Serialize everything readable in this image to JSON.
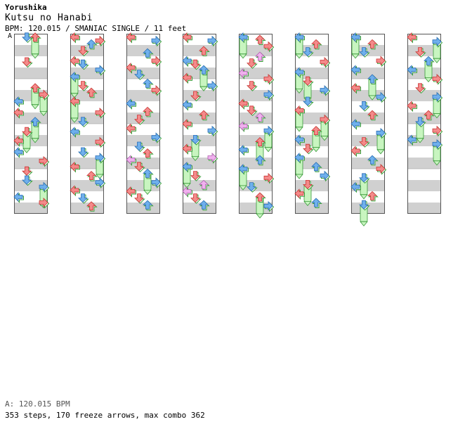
{
  "song": {
    "artist": "Yorushika",
    "title": "Kutsu no Hanabi",
    "meta": "BPM: 120.015 / SMANIAC SINGLE / 11 feet",
    "section_marker": "A"
  },
  "footer": {
    "bpm_line": "A: 120.015 BPM",
    "stats_line": "353 steps, 170 freeze arrows, max combo 362"
  },
  "colors": {
    "red": "#f48a8a",
    "blue": "#6fb0ec",
    "pink": "#f0b0ee",
    "freeze": "#c8f5c0",
    "stripe": "#d0d0d0"
  },
  "chart_data": {
    "type": "step-chart",
    "columns": 8,
    "beats_per_column": 16,
    "lanes": [
      "left",
      "down",
      "up",
      "right"
    ],
    "notes": [
      [
        0,
        0.3,
        1,
        "b",
        0
      ],
      [
        0,
        0.3,
        2,
        "r",
        2
      ],
      [
        0,
        2.5,
        1,
        "r",
        0
      ],
      [
        0,
        4.8,
        2,
        "r",
        1
      ],
      [
        0,
        5.4,
        3,
        "r",
        1
      ],
      [
        0,
        6.0,
        0,
        "b",
        0
      ],
      [
        0,
        7.0,
        0,
        "r",
        0
      ],
      [
        0,
        7.8,
        2,
        "b",
        1
      ],
      [
        0,
        8.7,
        1,
        "r",
        1
      ],
      [
        0,
        9.5,
        0,
        "r",
        0
      ],
      [
        0,
        10.5,
        0,
        "b",
        0
      ],
      [
        0,
        11.3,
        3,
        "r",
        0
      ],
      [
        0,
        12.2,
        1,
        "r",
        0
      ],
      [
        0,
        13.0,
        1,
        "b",
        0
      ],
      [
        0,
        13.6,
        3,
        "b",
        1
      ],
      [
        0,
        14.5,
        0,
        "b",
        0
      ],
      [
        0,
        15.0,
        3,
        "r",
        0
      ],
      [
        1,
        0.3,
        0,
        "r",
        0
      ],
      [
        1,
        0.6,
        3,
        "r",
        0
      ],
      [
        1,
        0.9,
        2,
        "b",
        0
      ],
      [
        1,
        1.5,
        1,
        "r",
        0
      ],
      [
        1,
        2.4,
        0,
        "r",
        0
      ],
      [
        1,
        2.7,
        1,
        "b",
        0
      ],
      [
        1,
        3.2,
        3,
        "b",
        0
      ],
      [
        1,
        3.8,
        0,
        "b",
        1
      ],
      [
        1,
        4.6,
        1,
        "r",
        0
      ],
      [
        1,
        5.2,
        2,
        "r",
        0
      ],
      [
        1,
        6.0,
        0,
        "r",
        1
      ],
      [
        1,
        7.0,
        3,
        "r",
        0
      ],
      [
        1,
        7.8,
        1,
        "b",
        0
      ],
      [
        1,
        8.7,
        0,
        "b",
        0
      ],
      [
        1,
        9.6,
        3,
        "r",
        0
      ],
      [
        1,
        10.5,
        1,
        "b",
        0
      ],
      [
        1,
        11.0,
        3,
        "b",
        1
      ],
      [
        1,
        11.8,
        0,
        "r",
        0
      ],
      [
        1,
        12.6,
        2,
        "r",
        0
      ],
      [
        1,
        13.2,
        3,
        "b",
        0
      ],
      [
        1,
        13.9,
        0,
        "r",
        0
      ],
      [
        1,
        14.6,
        1,
        "b",
        0
      ],
      [
        1,
        15.3,
        2,
        "r",
        0
      ],
      [
        2,
        0.3,
        0,
        "r",
        0
      ],
      [
        2,
        0.6,
        3,
        "b",
        0
      ],
      [
        2,
        1.7,
        2,
        "b",
        0
      ],
      [
        2,
        2.4,
        3,
        "r",
        0
      ],
      [
        2,
        3.0,
        0,
        "r",
        0
      ],
      [
        2,
        3.6,
        1,
        "b",
        0
      ],
      [
        2,
        4.4,
        2,
        "b",
        0
      ],
      [
        2,
        5.0,
        3,
        "r",
        0
      ],
      [
        2,
        6.2,
        0,
        "b",
        0
      ],
      [
        2,
        6.9,
        2,
        "r",
        0
      ],
      [
        2,
        7.6,
        1,
        "r",
        0
      ],
      [
        2,
        8.4,
        0,
        "r",
        0
      ],
      [
        2,
        9.2,
        3,
        "b",
        0
      ],
      [
        2,
        10.0,
        1,
        "b",
        0
      ],
      [
        2,
        10.6,
        2,
        "r",
        0
      ],
      [
        2,
        11.2,
        0,
        "p",
        0
      ],
      [
        2,
        11.8,
        1,
        "r",
        0
      ],
      [
        2,
        12.4,
        2,
        "b",
        1
      ],
      [
        2,
        13.2,
        3,
        "b",
        0
      ],
      [
        2,
        14.0,
        0,
        "r",
        0
      ],
      [
        2,
        14.6,
        1,
        "r",
        0
      ],
      [
        2,
        15.2,
        2,
        "b",
        0
      ],
      [
        3,
        0.3,
        0,
        "r",
        0
      ],
      [
        3,
        0.6,
        3,
        "b",
        0
      ],
      [
        3,
        1.5,
        2,
        "r",
        0
      ],
      [
        3,
        2.4,
        0,
        "b",
        0
      ],
      [
        3,
        2.7,
        1,
        "r",
        0
      ],
      [
        3,
        3.2,
        2,
        "b",
        1
      ],
      [
        3,
        3.9,
        0,
        "r",
        0
      ],
      [
        3,
        4.6,
        3,
        "b",
        0
      ],
      [
        3,
        5.5,
        1,
        "r",
        0
      ],
      [
        3,
        6.3,
        0,
        "b",
        0
      ],
      [
        3,
        7.2,
        2,
        "r",
        0
      ],
      [
        3,
        8.0,
        0,
        "r",
        0
      ],
      [
        3,
        8.6,
        3,
        "b",
        0
      ],
      [
        3,
        9.4,
        1,
        "b",
        1
      ],
      [
        3,
        10.2,
        0,
        "r",
        0
      ],
      [
        3,
        11.0,
        3,
        "p",
        0
      ],
      [
        3,
        11.8,
        0,
        "b",
        1
      ],
      [
        3,
        12.6,
        1,
        "r",
        0
      ],
      [
        3,
        13.4,
        2,
        "p",
        0
      ],
      [
        3,
        14.0,
        0,
        "p",
        0
      ],
      [
        3,
        14.6,
        1,
        "r",
        0
      ],
      [
        3,
        15.2,
        2,
        "b",
        0
      ],
      [
        4,
        0.3,
        0,
        "b",
        1
      ],
      [
        4,
        0.5,
        2,
        "r",
        0
      ],
      [
        4,
        1.1,
        3,
        "r",
        0
      ],
      [
        4,
        2.0,
        2,
        "p",
        0
      ],
      [
        4,
        2.6,
        1,
        "r",
        0
      ],
      [
        4,
        3.5,
        0,
        "p",
        0
      ],
      [
        4,
        4.0,
        3,
        "r",
        0
      ],
      [
        4,
        4.6,
        1,
        "r",
        0
      ],
      [
        4,
        5.4,
        3,
        "b",
        0
      ],
      [
        4,
        6.2,
        0,
        "r",
        0
      ],
      [
        4,
        6.8,
        1,
        "r",
        0
      ],
      [
        4,
        7.4,
        2,
        "p",
        0
      ],
      [
        4,
        8.2,
        0,
        "p",
        0
      ],
      [
        4,
        8.6,
        3,
        "b",
        1
      ],
      [
        4,
        9.6,
        2,
        "r",
        1
      ],
      [
        4,
        10.3,
        0,
        "b",
        0
      ],
      [
        4,
        11.2,
        2,
        "b",
        0
      ],
      [
        4,
        12.0,
        0,
        "b",
        1
      ],
      [
        4,
        12.8,
        3,
        "r",
        0
      ],
      [
        4,
        13.6,
        1,
        "b",
        0
      ],
      [
        4,
        14.5,
        2,
        "r",
        1
      ],
      [
        4,
        15.3,
        3,
        "b",
        0
      ],
      [
        5,
        0.3,
        0,
        "b",
        1
      ],
      [
        5,
        0.9,
        2,
        "r",
        0
      ],
      [
        5,
        1.6,
        1,
        "b",
        0
      ],
      [
        5,
        2.5,
        3,
        "r",
        0
      ],
      [
        5,
        3.4,
        0,
        "b",
        1
      ],
      [
        5,
        4.2,
        1,
        "r",
        1
      ],
      [
        5,
        5.0,
        3,
        "b",
        0
      ],
      [
        5,
        6.0,
        1,
        "b",
        0
      ],
      [
        5,
        6.8,
        0,
        "r",
        1
      ],
      [
        5,
        7.6,
        3,
        "r",
        1
      ],
      [
        5,
        8.6,
        2,
        "r",
        1
      ],
      [
        5,
        9.4,
        0,
        "b",
        0
      ],
      [
        5,
        10.2,
        1,
        "r",
        0
      ],
      [
        5,
        11.0,
        0,
        "b",
        1
      ],
      [
        5,
        11.8,
        2,
        "b",
        0
      ],
      [
        5,
        12.6,
        3,
        "b",
        0
      ],
      [
        5,
        13.4,
        1,
        "r",
        1
      ],
      [
        5,
        14.2,
        0,
        "r",
        0
      ],
      [
        5,
        15.0,
        2,
        "b",
        0
      ],
      [
        6,
        0.3,
        0,
        "b",
        1
      ],
      [
        6,
        0.9,
        2,
        "r",
        0
      ],
      [
        6,
        1.6,
        1,
        "b",
        0
      ],
      [
        6,
        2.4,
        3,
        "r",
        0
      ],
      [
        6,
        3.2,
        0,
        "b",
        0
      ],
      [
        6,
        4.0,
        2,
        "b",
        1
      ],
      [
        6,
        4.8,
        0,
        "r",
        0
      ],
      [
        6,
        5.6,
        3,
        "b",
        0
      ],
      [
        6,
        6.4,
        1,
        "b",
        0
      ],
      [
        6,
        7.2,
        2,
        "r",
        0
      ],
      [
        6,
        8.0,
        0,
        "b",
        0
      ],
      [
        6,
        8.8,
        3,
        "b",
        1
      ],
      [
        6,
        9.6,
        1,
        "r",
        0
      ],
      [
        6,
        10.4,
        0,
        "r",
        0
      ],
      [
        6,
        11.2,
        2,
        "b",
        0
      ],
      [
        6,
        12.0,
        3,
        "r",
        0
      ],
      [
        6,
        12.8,
        1,
        "b",
        1
      ],
      [
        6,
        13.6,
        0,
        "b",
        0
      ],
      [
        6,
        14.4,
        2,
        "r",
        0
      ],
      [
        6,
        15.2,
        1,
        "b",
        1
      ],
      [
        7,
        0.3,
        0,
        "r",
        0
      ],
      [
        7,
        0.7,
        3,
        "b",
        1
      ],
      [
        7,
        1.6,
        1,
        "r",
        0
      ],
      [
        7,
        2.4,
        2,
        "b",
        1
      ],
      [
        7,
        3.2,
        0,
        "b",
        0
      ],
      [
        7,
        4.0,
        3,
        "r",
        0
      ],
      [
        7,
        4.8,
        1,
        "r",
        0
      ],
      [
        7,
        5.6,
        3,
        "b",
        1
      ],
      [
        7,
        6.4,
        0,
        "r",
        0
      ],
      [
        7,
        7.2,
        2,
        "r",
        0
      ],
      [
        7,
        7.8,
        1,
        "b",
        1
      ],
      [
        7,
        8.6,
        3,
        "r",
        0
      ],
      [
        7,
        9.4,
        0,
        "b",
        0
      ],
      [
        7,
        9.8,
        3,
        "b",
        1
      ]
    ]
  }
}
